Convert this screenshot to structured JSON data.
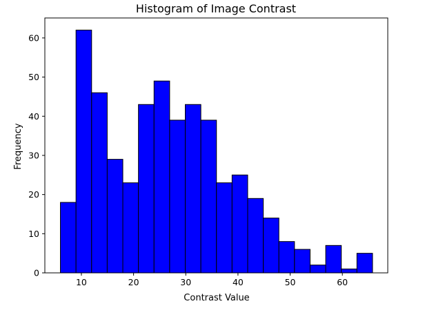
{
  "chart_data": {
    "type": "bar",
    "title": "Histogram of Image Contrast",
    "xlabel": "Contrast Value",
    "ylabel": "Frequency",
    "xlim": [
      3.0,
      68.7
    ],
    "ylim": [
      0,
      65.1
    ],
    "xticks": [
      10,
      20,
      30,
      40,
      50,
      60
    ],
    "yticks": [
      0,
      10,
      20,
      30,
      40,
      50,
      60
    ],
    "bins": [
      {
        "x0": 5.98,
        "x1": 8.97,
        "value": 18
      },
      {
        "x0": 8.97,
        "x1": 11.96,
        "value": 62
      },
      {
        "x0": 11.96,
        "x1": 14.95,
        "value": 46
      },
      {
        "x0": 14.95,
        "x1": 17.94,
        "value": 29
      },
      {
        "x0": 17.94,
        "x1": 20.93,
        "value": 23
      },
      {
        "x0": 20.93,
        "x1": 23.92,
        "value": 43
      },
      {
        "x0": 23.92,
        "x1": 26.91,
        "value": 49
      },
      {
        "x0": 26.91,
        "x1": 29.9,
        "value": 39
      },
      {
        "x0": 29.9,
        "x1": 32.89,
        "value": 43
      },
      {
        "x0": 32.89,
        "x1": 35.88,
        "value": 39
      },
      {
        "x0": 35.88,
        "x1": 38.87,
        "value": 23
      },
      {
        "x0": 38.87,
        "x1": 41.86,
        "value": 25
      },
      {
        "x0": 41.86,
        "x1": 44.85,
        "value": 19
      },
      {
        "x0": 44.85,
        "x1": 47.84,
        "value": 14
      },
      {
        "x0": 47.84,
        "x1": 50.83,
        "value": 8
      },
      {
        "x0": 50.83,
        "x1": 53.82,
        "value": 6
      },
      {
        "x0": 53.82,
        "x1": 56.81,
        "value": 2
      },
      {
        "x0": 56.81,
        "x1": 59.8,
        "value": 7
      },
      {
        "x0": 59.8,
        "x1": 62.79,
        "value": 1
      },
      {
        "x0": 62.79,
        "x1": 65.78,
        "value": 5
      }
    ],
    "bar_color": "#0000ff",
    "edge_color": "#000000",
    "grid": false,
    "legend": false
  }
}
